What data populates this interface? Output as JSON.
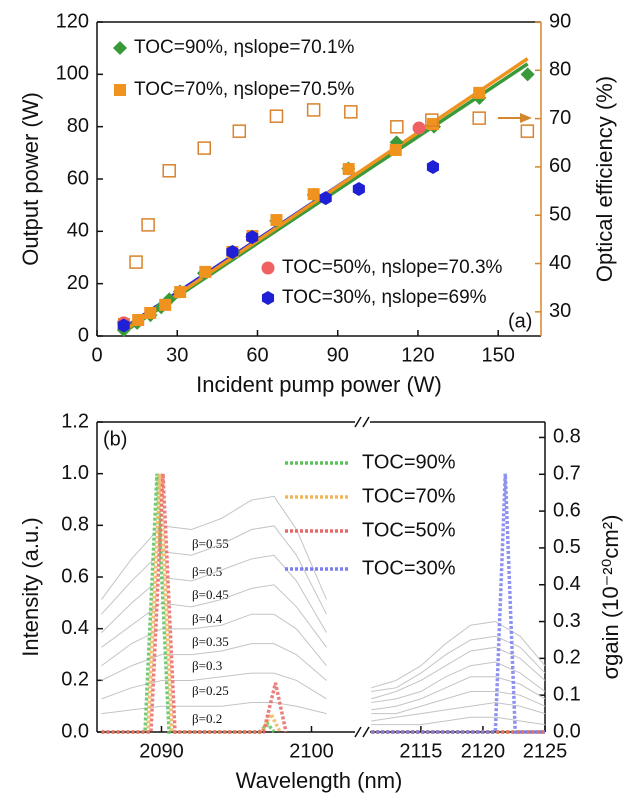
{
  "chart_data": [
    {
      "type": "scatter",
      "panel_label": "(a)",
      "xlabel": "Incident pump power (W)",
      "ylabel": "Output power (W)",
      "y2label": "Optical efficiency (%)",
      "xlim": [
        0,
        166
      ],
      "xticks": [
        0,
        30,
        60,
        90,
        120,
        150
      ],
      "ylim": [
        0,
        120
      ],
      "yticks": [
        0,
        20,
        40,
        60,
        80,
        100,
        120
      ],
      "y2lim": [
        25,
        90
      ],
      "y2ticks": [
        30,
        40,
        50,
        60,
        70,
        80,
        90
      ],
      "y2color": "#d4862c",
      "series": [
        {
          "name": "TOC=90%, ηslope=70.1%",
          "color": "#3a9a3a",
          "marker": "diamond",
          "x": [
            10,
            15,
            20,
            24,
            27,
            31,
            40,
            51,
            58,
            67,
            81,
            94,
            112,
            126,
            143,
            161
          ],
          "values": [
            2.3,
            5,
            8,
            11,
            14,
            17,
            24,
            32,
            38,
            44,
            54,
            64,
            74,
            80,
            91,
            100
          ]
        },
        {
          "name": "TOC=70%, ηslope=70.5%",
          "color": "#f0921e",
          "marker": "square",
          "x": [
            10.1,
            15.4,
            19.9,
            25.5,
            31.1,
            40.5,
            50.6,
            58.1,
            67.1,
            81,
            94.1,
            111.7,
            125.6,
            142.9
          ],
          "values": [
            4.6,
            6.1,
            8.8,
            11.9,
            16.8,
            24.5,
            32.1,
            38.2,
            44.3,
            54.2,
            63.8,
            71.1,
            81,
            92.9
          ]
        },
        {
          "name": "TOC=50%, ηslope=70.3%",
          "color": "#f06262",
          "marker": "circle",
          "x": [
            10,
            120.4
          ],
          "values": [
            5,
            79.5
          ]
        },
        {
          "name": "TOC=30%, ηslope=69%",
          "color": "#1f1fd6",
          "marker": "hexagon",
          "x": [
            10,
            50.6,
            58,
            85.5,
            97.9,
            125.6
          ],
          "values": [
            4,
            32.1,
            37.8,
            52.7,
            56.2,
            64.6
          ]
        },
        {
          "color": "#d9822b",
          "marker": "square-open",
          "axis": "y2",
          "x": [
            14.6,
            19.1,
            27,
            40.1,
            53.2,
            67.1,
            81,
            94.9,
            112.1,
            125.2,
            142.9,
            160.9
          ],
          "values": [
            40.3,
            48,
            59.2,
            63.9,
            67.4,
            70.5,
            71.8,
            71.4,
            68.3,
            69.7,
            70.1,
            67.4
          ]
        }
      ],
      "fit_lines": [
        {
          "color": "#2a2ad8",
          "x": [
            10,
            97
          ],
          "values": [
            3,
            62
          ]
        },
        {
          "color": "#3a9a3a",
          "x": [
            10,
            161
          ],
          "values": [
            1.5,
            104
          ]
        },
        {
          "color": "#f0921e",
          "x": [
            10,
            161
          ],
          "values": [
            2,
            106
          ]
        }
      ]
    },
    {
      "type": "line",
      "panel_label": "(b)",
      "xlabel": "Wavelength (nm)",
      "ylabel": "Intensity (a.u.)",
      "y2label": "σgain (10⁻²⁰cm²)",
      "x_segments": [
        {
          "xlim": [
            2085.7,
            2102.9
          ],
          "xticks": [
            2090,
            2100
          ]
        },
        {
          "xlim": [
            2110.9,
            2125
          ],
          "xticks": [
            2115,
            2120,
            2125
          ]
        }
      ],
      "ylim": [
        0,
        1.2
      ],
      "yticks": [
        {
          "value": 0,
          "label": "0.0"
        },
        0.2,
        0.4,
        0.6,
        0.8,
        {
          "value": 1,
          "label": "1.0"
        },
        1.2
      ],
      "y2lim": [
        0,
        0.842
      ],
      "y2ticks": [
        {
          "value": 0,
          "label": "0.0"
        },
        0.1,
        0.2,
        0.3,
        0.4,
        0.5,
        0.6,
        0.7,
        0.8
      ],
      "series": [
        {
          "name": "β=0.55",
          "color": "#c4c4c4",
          "axis": "y2",
          "x": [
            2086,
            2088,
            2090,
            2092,
            2094,
            2096,
            2097.5,
            2099,
            2101,
            2103,
            2107,
            2111,
            2113,
            2115,
            2117,
            2119,
            2121,
            2123,
            2125
          ],
          "values": [
            0.36,
            0.47,
            0.56,
            0.55,
            0.58,
            0.63,
            0.64,
            0.55,
            0.36,
            0.27,
            null,
            0.12,
            0.14,
            0.18,
            0.24,
            0.29,
            0.3,
            0.26,
            0.18
          ]
        },
        {
          "name": "β=0.5",
          "color": "#c4c4c4",
          "axis": "y2",
          "x": [
            2086,
            2088,
            2090,
            2092,
            2094,
            2096,
            2097.5,
            2099,
            2101,
            2103,
            2107,
            2111,
            2113,
            2115,
            2117,
            2119,
            2121,
            2123,
            2125
          ],
          "values": [
            0.32,
            0.41,
            0.49,
            0.48,
            0.51,
            0.55,
            0.56,
            0.48,
            0.32,
            0.24,
            null,
            0.11,
            0.12,
            0.16,
            0.21,
            0.25,
            0.26,
            0.23,
            0.16
          ]
        },
        {
          "name": "β=0.45",
          "color": "#c4c4c4",
          "axis": "y2",
          "x": [
            2086,
            2088,
            2090,
            2092,
            2094,
            2096,
            2097.5,
            2099,
            2101,
            2103,
            2107,
            2111,
            2113,
            2115,
            2117,
            2119,
            2121,
            2123,
            2125
          ],
          "values": [
            0.27,
            0.35,
            0.42,
            0.41,
            0.44,
            0.47,
            0.48,
            0.41,
            0.27,
            0.2,
            null,
            0.09,
            0.11,
            0.14,
            0.18,
            0.22,
            0.23,
            0.2,
            0.14
          ]
        },
        {
          "name": "β=0.4",
          "color": "#c4c4c4",
          "axis": "y2",
          "x": [
            2086,
            2088,
            2090,
            2092,
            2094,
            2096,
            2097.5,
            2099,
            2101,
            2103,
            2107,
            2111,
            2113,
            2115,
            2117,
            2119,
            2121,
            2123,
            2125
          ],
          "values": [
            0.23,
            0.29,
            0.35,
            0.34,
            0.36,
            0.39,
            0.4,
            0.34,
            0.23,
            0.17,
            null,
            0.08,
            0.09,
            0.11,
            0.15,
            0.18,
            0.19,
            0.16,
            0.11
          ]
        },
        {
          "name": "β=0.35",
          "color": "#c4c4c4",
          "axis": "y2",
          "x": [
            2086,
            2088,
            2090,
            2092,
            2094,
            2096,
            2097.5,
            2099,
            2101,
            2103,
            2107,
            2111,
            2113,
            2115,
            2117,
            2119,
            2121,
            2123,
            2125
          ],
          "values": [
            0.18,
            0.24,
            0.28,
            0.28,
            0.29,
            0.32,
            0.32,
            0.28,
            0.18,
            0.14,
            null,
            0.06,
            0.07,
            0.09,
            0.12,
            0.15,
            0.15,
            0.13,
            0.09
          ]
        },
        {
          "name": "β=0.3",
          "color": "#c4c4c4",
          "axis": "y2",
          "x": [
            2086,
            2088,
            2090,
            2092,
            2094,
            2096,
            2097.5,
            2099,
            2101,
            2103,
            2107,
            2111,
            2113,
            2115,
            2117,
            2119,
            2121,
            2123,
            2125
          ],
          "values": [
            0.14,
            0.18,
            0.21,
            0.21,
            0.22,
            0.24,
            0.24,
            0.21,
            0.14,
            0.1,
            null,
            0.05,
            0.05,
            0.07,
            0.09,
            0.11,
            0.11,
            0.1,
            0.07
          ]
        },
        {
          "name": "β=0.25",
          "color": "#c4c4c4",
          "axis": "y2",
          "x": [
            2086,
            2088,
            2090,
            2092,
            2094,
            2096,
            2097.5,
            2099,
            2101,
            2103,
            2107,
            2111,
            2113,
            2115,
            2117,
            2119,
            2121,
            2123,
            2125
          ],
          "values": [
            0.09,
            0.12,
            0.14,
            0.14,
            0.15,
            0.16,
            0.16,
            0.14,
            0.09,
            0.07,
            null,
            0.03,
            0.04,
            0.05,
            0.06,
            0.07,
            0.08,
            0.07,
            0.05
          ]
        },
        {
          "name": "β=0.2",
          "color": "#c4c4c4",
          "axis": "y2",
          "x": [
            2086,
            2088,
            2090,
            2092,
            2094,
            2096,
            2097.5,
            2099,
            2101,
            2103,
            2107,
            2111,
            2113,
            2115,
            2117,
            2119,
            2121,
            2123,
            2125
          ],
          "values": [
            0.05,
            0.06,
            0.07,
            0.07,
            0.07,
            0.08,
            0.08,
            0.07,
            0.05,
            0.03,
            null,
            0.02,
            0.02,
            0.02,
            0.03,
            0.04,
            0.04,
            0.03,
            0.02
          ]
        },
        {
          "name": "TOC=90%",
          "color": "#5cc25c",
          "dashed": true,
          "x": [
            2086,
            2088.9,
            2089.3,
            2089.7,
            2090.1,
            2090.5,
            2096.5,
            2097.1,
            2097.5,
            2103,
            2107,
            2111,
            2125
          ],
          "values": [
            0,
            0,
            0.5,
            1.0,
            0.5,
            0,
            0,
            0.03,
            0,
            0,
            null,
            0,
            0
          ]
        },
        {
          "name": "TOC=70%",
          "color": "#f2b65a",
          "dashed": true,
          "x": [
            2086,
            2089.1,
            2089.5,
            2089.9,
            2090.3,
            2090.7,
            2096.7,
            2097.3,
            2097.9,
            2103,
            2107,
            2111,
            2125
          ],
          "values": [
            0,
            0,
            0.5,
            1.0,
            0.5,
            0,
            0,
            0.07,
            0,
            0,
            null,
            0,
            0
          ]
        },
        {
          "name": "TOC=50%",
          "color": "#e86868",
          "dashed": true,
          "x": [
            2086,
            2089.3,
            2089.7,
            2090.1,
            2090.5,
            2090.9,
            2096.8,
            2097.6,
            2098.3,
            2103,
            2107,
            2111,
            2125
          ],
          "values": [
            0,
            0,
            0.5,
            1.0,
            0.5,
            0,
            0,
            0.19,
            0,
            0,
            null,
            0,
            0
          ]
        },
        {
          "name": "TOC=30%",
          "color": "#7a7ef0",
          "dashed": true,
          "x": [
            2086,
            2103,
            2107,
            2111,
            2121,
            2121.4,
            2121.8,
            2122.2,
            2122.6,
            2125
          ],
          "values": [
            0,
            0,
            null,
            0,
            0,
            0.5,
            1.0,
            0.5,
            0,
            0
          ]
        }
      ]
    }
  ]
}
